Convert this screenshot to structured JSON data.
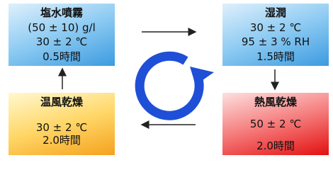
{
  "nodes": [
    {
      "title": "塩水噴霧",
      "lines": [
        "(50 ± 10) g/l",
        "30 ± 2 ℃",
        "0.5時間"
      ]
    },
    {
      "title": "湿潤",
      "lines": [
        "30 ± 2 ℃",
        "95 ± 3 % RH",
        "1.5時間"
      ]
    },
    {
      "title": "熱風乾燥",
      "lines": [
        "50 ± 2 ℃",
        "2.0時間"
      ]
    },
    {
      "title": "温風乾燥",
      "lines": [
        "30 ± 2 ℃",
        "2.0時間"
      ]
    }
  ]
}
